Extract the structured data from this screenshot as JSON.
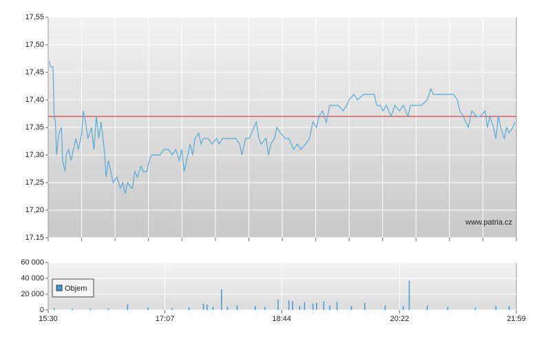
{
  "chart_data": [
    {
      "type": "line",
      "color": "#55aad4",
      "x": [
        "15:31",
        "15:32",
        "15:34",
        "15:35",
        "15:36",
        "15:37",
        "15:39",
        "15:41",
        "15:42",
        "15:44",
        "15:45",
        "15:47",
        "15:49",
        "15:51",
        "15:53",
        "15:55",
        "15:58",
        "15:59",
        "16:01",
        "16:03",
        "16:06",
        "16:08",
        "16:10",
        "16:12",
        "16:14",
        "16:15",
        "16:17",
        "16:18",
        "16:20",
        "16:22",
        "16:24",
        "16:27",
        "16:30",
        "16:32",
        "16:34",
        "16:36",
        "16:39",
        "16:40",
        "16:42",
        "16:44",
        "16:47",
        "16:49",
        "16:52",
        "16:54",
        "16:56",
        "16:59",
        "17:03",
        "17:06",
        "17:10",
        "17:13",
        "17:16",
        "17:19",
        "17:21",
        "17:23",
        "17:26",
        "17:28",
        "17:30",
        "17:32",
        "17:35",
        "17:37",
        "17:39",
        "17:43",
        "17:46",
        "17:50",
        "17:52",
        "17:55",
        "17:59",
        "18:02",
        "18:06",
        "18:09",
        "18:11",
        "18:14",
        "18:17",
        "18:19",
        "18:23",
        "18:25",
        "18:27",
        "18:31",
        "18:33",
        "18:35",
        "18:38",
        "18:40",
        "18:43",
        "18:47",
        "18:50",
        "18:54",
        "18:57",
        "19:00",
        "19:04",
        "19:07",
        "19:10",
        "19:13",
        "19:15",
        "19:18",
        "19:21",
        "19:24",
        "19:28",
        "19:31",
        "19:35",
        "19:38",
        "19:40",
        "19:44",
        "19:47",
        "19:52",
        "19:57",
        "20:01",
        "20:03",
        "20:06",
        "20:08",
        "20:11",
        "20:15",
        "20:18",
        "20:22",
        "20:25",
        "20:29",
        "20:31",
        "20:35",
        "20:40",
        "20:45",
        "20:48",
        "20:50",
        "20:54",
        "20:58",
        "21:03",
        "21:07",
        "21:10",
        "21:12",
        "21:15",
        "21:19",
        "21:22",
        "21:26",
        "21:29",
        "21:33",
        "21:35",
        "21:37",
        "21:40",
        "21:42",
        "21:44",
        "21:46",
        "21:49",
        "21:51",
        "21:53",
        "21:56",
        "21:58"
      ],
      "values": [
        17.47,
        17.46,
        17.46,
        17.37,
        17.36,
        17.3,
        17.34,
        17.35,
        17.29,
        17.27,
        17.3,
        17.31,
        17.29,
        17.31,
        17.33,
        17.31,
        17.34,
        17.38,
        17.36,
        17.33,
        17.35,
        17.31,
        17.37,
        17.33,
        17.36,
        17.34,
        17.3,
        17.26,
        17.29,
        17.27,
        17.25,
        17.26,
        17.24,
        17.25,
        17.23,
        17.25,
        17.24,
        17.24,
        17.27,
        17.26,
        17.28,
        17.27,
        17.27,
        17.29,
        17.3,
        17.3,
        17.3,
        17.31,
        17.31,
        17.3,
        17.31,
        17.29,
        17.31,
        17.27,
        17.3,
        17.32,
        17.3,
        17.33,
        17.34,
        17.32,
        17.33,
        17.33,
        17.32,
        17.33,
        17.32,
        17.33,
        17.33,
        17.33,
        17.33,
        17.32,
        17.3,
        17.33,
        17.33,
        17.34,
        17.36,
        17.33,
        17.32,
        17.33,
        17.3,
        17.32,
        17.33,
        17.35,
        17.34,
        17.33,
        17.33,
        17.31,
        17.32,
        17.31,
        17.32,
        17.33,
        17.36,
        17.35,
        17.37,
        17.38,
        17.36,
        17.39,
        17.39,
        17.39,
        17.38,
        17.39,
        17.4,
        17.41,
        17.4,
        17.41,
        17.41,
        17.41,
        17.39,
        17.39,
        17.38,
        17.39,
        17.37,
        17.39,
        17.38,
        17.39,
        17.37,
        17.39,
        17.39,
        17.39,
        17.4,
        17.42,
        17.41,
        17.41,
        17.41,
        17.41,
        17.41,
        17.4,
        17.38,
        17.37,
        17.35,
        17.38,
        17.37,
        17.37,
        17.38,
        17.35,
        17.37,
        17.35,
        17.33,
        17.37,
        17.35,
        17.33,
        17.35,
        17.34,
        17.35,
        17.36
      ],
      "xlim": [
        "15:30",
        "21:59"
      ],
      "x_divisions": 14,
      "ylim": [
        17.15,
        17.55
      ],
      "yticks": [
        "17.15",
        {
          "value": 17.2,
          "label": "17,20"
        },
        {
          "value": 17.25,
          "label": "17,25"
        },
        {
          "value": 17.3,
          "label": "17,30"
        },
        {
          "value": 17.35,
          "label": "17,35"
        },
        {
          "value": 17.4,
          "label": "17,40"
        },
        {
          "value": 17.45,
          "label": "17,45"
        },
        {
          "value": 17.5,
          "label": "17,50"
        },
        {
          "value": 17.55,
          "label": "17,55"
        }
      ],
      "reference_line": {
        "value": 17.37,
        "color": "#cc2222"
      },
      "watermark": "www.patria.cz",
      "grid": true
    },
    {
      "type": "bar",
      "x": [
        "15:35",
        "15:50",
        "16:05",
        "16:20",
        "16:36",
        "16:53",
        "17:13",
        "17:27",
        "17:39",
        "17:42",
        "17:47",
        "17:54",
        "17:59",
        "18:07",
        "18:22",
        "18:30",
        "18:41",
        "18:50",
        "18:53",
        "18:59",
        "19:03",
        "19:10",
        "19:13",
        "19:19",
        "19:24",
        "19:30",
        "19:42",
        "19:53",
        "20:10",
        "20:25",
        "20:30",
        "20:45",
        "21:02",
        "21:25",
        "21:42",
        "21:53"
      ],
      "series": [
        {
          "name": "Objem",
          "color": "#3d9bd1",
          "values": [
            2000,
            1500,
            1500,
            2000,
            7000,
            3000,
            2500,
            3000,
            8000,
            7000,
            4000,
            26000,
            4000,
            6000,
            5000,
            4000,
            13000,
            12000,
            11000,
            5000,
            10000,
            8000,
            9000,
            11000,
            6000,
            10000,
            5000,
            9000,
            6000,
            5000,
            37000,
            6000,
            4000,
            3000,
            5000,
            5000
          ]
        }
      ],
      "xlim": [
        "15:30",
        "21:59"
      ],
      "xticks": [
        "15:30",
        "17:07",
        "18:44",
        "20:22",
        "21:59"
      ],
      "ylim": [
        0,
        60000
      ],
      "yticks": [
        0,
        {
          "value": 20000,
          "label": "20 000"
        },
        {
          "value": 40000,
          "label": "40 000"
        },
        {
          "value": 60000,
          "label": "60 000"
        }
      ],
      "grid": true
    }
  ]
}
